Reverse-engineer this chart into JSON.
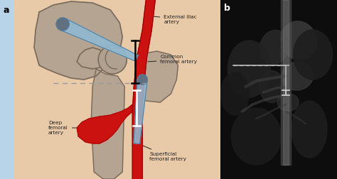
{
  "fig_width": 4.74,
  "fig_height": 2.52,
  "dpi": 100,
  "skin_color": "#e8c9a8",
  "left_strip_color": "#b8d4e8",
  "bone_fill": "#b0a090",
  "bone_outline": "#7a6a5a",
  "artery_color": "#cc1111",
  "artery_edge": "#990000",
  "needle_fill": "#90b8d0",
  "needle_outline": "#5080a0",
  "needle_cap": "#607080",
  "label_color": "#222222",
  "dashed_color": "#999999",
  "panel_a_label": "a",
  "panel_b_label": "b",
  "label_fontsize": 9,
  "annot_fontsize": 5.2,
  "ext_iliac_text": "External iliac\nartery",
  "common_fem_text": "Common\nfemoral artery",
  "deep_fem_text": "Deep\nfemoral\nartery",
  "superficial_fem_text": "Superficial\nfemoral artery",
  "xray_bg": "#111111",
  "xray_marker_color": "#bbbbbb",
  "xray_double_color": "#cccccc"
}
